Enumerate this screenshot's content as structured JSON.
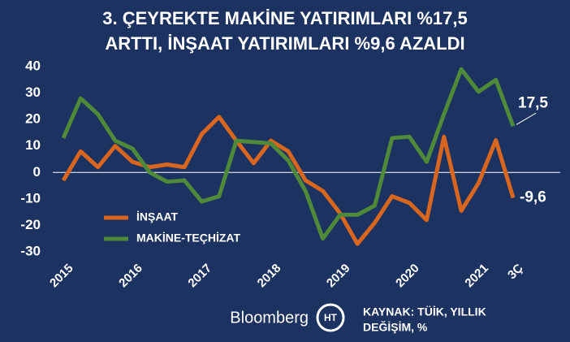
{
  "chart_data": {
    "type": "line",
    "title": [
      "3. ÇEYREKTE MAKİNE YATIRIMLARI %17,5",
      "ARTTI, İNŞAAT YATIRIMLARI %9,6 AZALDI"
    ],
    "categories": [
      "2015",
      null,
      null,
      null,
      "2016",
      null,
      null,
      null,
      "2017",
      null,
      null,
      null,
      "2018",
      null,
      null,
      null,
      "2019",
      null,
      null,
      null,
      "2020",
      null,
      null,
      null,
      "2021",
      null,
      "3Ç"
    ],
    "series": [
      {
        "name": "İNŞAAT",
        "color": "#d9661f",
        "values": [
          -3,
          8,
          2,
          10,
          4,
          2,
          3,
          2,
          14.5,
          21,
          12,
          3.5,
          12,
          8,
          -3,
          -7,
          -15.5,
          -27,
          -19,
          -9,
          -11.5,
          -18,
          13.5,
          -14.5,
          -4,
          12.2,
          -9.6
        ],
        "value_labels": [
          null,
          null,
          null,
          null,
          null,
          null,
          null,
          null,
          null,
          null,
          null,
          null,
          null,
          null,
          null,
          null,
          null,
          null,
          null,
          null,
          null,
          null,
          null,
          null,
          null,
          null,
          "-9,6"
        ]
      },
      {
        "name": "MAKİNE-TEÇHİZAT",
        "color": "#4e8a3a",
        "values": [
          13,
          28,
          22,
          12,
          9,
          0,
          -3.5,
          -3,
          -11,
          -9,
          12,
          11.5,
          11,
          4.5,
          -7,
          -25,
          -16,
          -16,
          -12.5,
          13,
          13.5,
          4,
          22,
          39,
          30.5,
          35,
          17.5
        ],
        "value_labels": [
          null,
          null,
          null,
          null,
          null,
          null,
          null,
          null,
          null,
          null,
          null,
          null,
          null,
          null,
          null,
          null,
          null,
          null,
          null,
          null,
          null,
          null,
          null,
          null,
          null,
          null,
          "17,5"
        ]
      }
    ],
    "ylim": [
      -30,
      40
    ],
    "yticks": [
      -30,
      -20,
      -10,
      0,
      10,
      20,
      30,
      40
    ],
    "zero_line": true,
    "source": [
      "KAYNAK: TÜİK, YILLIK",
      "DEĞİŞİM, %"
    ],
    "logo": "Bloomberg",
    "logo_mark": "HT"
  }
}
